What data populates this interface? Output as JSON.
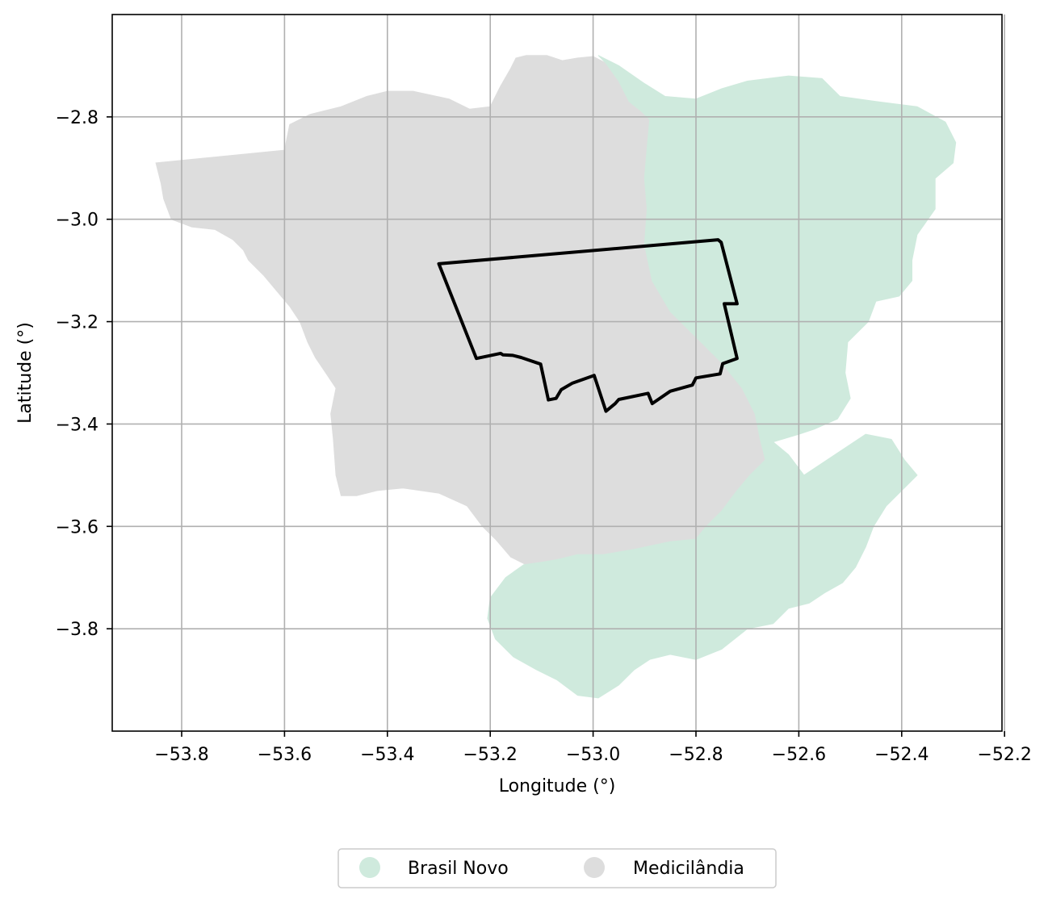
{
  "chart_data": {
    "type": "map",
    "xlabel": "Longitude (°)",
    "ylabel": "Latitude (°)",
    "xlim": [
      -53.935,
      -52.205
    ],
    "ylim": [
      -4.0,
      -2.6
    ],
    "xticks": [
      -53.8,
      -53.6,
      -53.4,
      -53.2,
      -53.0,
      -52.8,
      -52.6,
      -52.4,
      -52.2
    ],
    "yticks": [
      -2.8,
      -3.0,
      -3.2,
      -3.4,
      -3.6,
      -3.8
    ],
    "xtick_labels": [
      "−53.8",
      "−53.6",
      "−53.4",
      "−53.2",
      "−53.0",
      "−52.8",
      "−52.6",
      "−52.4",
      "−52.2"
    ],
    "ytick_labels": [
      "−2.8",
      "−3.0",
      "−3.2",
      "−3.4",
      "−3.6",
      "−3.8"
    ],
    "grid": true,
    "legend_position": "bottom-center",
    "regions": [
      {
        "name": "Medicilândia",
        "color": "#dddddd",
        "polygon": [
          [
            -53.85,
            -2.89
          ],
          [
            -53.6,
            -2.865
          ],
          [
            -53.59,
            -2.815
          ],
          [
            -53.55,
            -2.795
          ],
          [
            -53.49,
            -2.78
          ],
          [
            -53.44,
            -2.76
          ],
          [
            -53.4,
            -2.75
          ],
          [
            -53.35,
            -2.75
          ],
          [
            -53.28,
            -2.765
          ],
          [
            -53.24,
            -2.785
          ],
          [
            -53.2,
            -2.78
          ],
          [
            -53.18,
            -2.74
          ],
          [
            -53.16,
            -2.705
          ],
          [
            -53.15,
            -2.685
          ],
          [
            -53.13,
            -2.68
          ],
          [
            -53.09,
            -2.68
          ],
          [
            -53.06,
            -2.69
          ],
          [
            -53.03,
            -2.685
          ],
          [
            -53.0,
            -2.682
          ],
          [
            -52.975,
            -2.695
          ],
          [
            -52.95,
            -2.73
          ],
          [
            -52.93,
            -2.77
          ],
          [
            -52.905,
            -2.79
          ],
          [
            -52.89,
            -2.805
          ],
          [
            -52.895,
            -2.86
          ],
          [
            -52.9,
            -2.92
          ],
          [
            -52.895,
            -2.98
          ],
          [
            -52.9,
            -3.05
          ],
          [
            -52.885,
            -3.12
          ],
          [
            -52.85,
            -3.18
          ],
          [
            -52.8,
            -3.23
          ],
          [
            -52.75,
            -3.28
          ],
          [
            -52.71,
            -3.33
          ],
          [
            -52.685,
            -3.38
          ],
          [
            -52.675,
            -3.43
          ],
          [
            -52.665,
            -3.47
          ],
          [
            -52.695,
            -3.5
          ],
          [
            -52.72,
            -3.53
          ],
          [
            -52.75,
            -3.57
          ],
          [
            -52.78,
            -3.6
          ],
          [
            -52.8,
            -3.625
          ],
          [
            -52.85,
            -3.63
          ],
          [
            -52.92,
            -3.645
          ],
          [
            -52.98,
            -3.655
          ],
          [
            -53.03,
            -3.655
          ],
          [
            -53.07,
            -3.665
          ],
          [
            -53.1,
            -3.67
          ],
          [
            -53.13,
            -3.675
          ],
          [
            -53.16,
            -3.66
          ],
          [
            -53.19,
            -3.625
          ],
          [
            -53.215,
            -3.6
          ],
          [
            -53.245,
            -3.56
          ],
          [
            -53.3,
            -3.535
          ],
          [
            -53.37,
            -3.525
          ],
          [
            -53.42,
            -3.53
          ],
          [
            -53.46,
            -3.54
          ],
          [
            -53.49,
            -3.54
          ],
          [
            -53.5,
            -3.5
          ],
          [
            -53.505,
            -3.43
          ],
          [
            -53.51,
            -3.38
          ],
          [
            -53.5,
            -3.33
          ],
          [
            -53.52,
            -3.3
          ],
          [
            -53.54,
            -3.27
          ],
          [
            -53.555,
            -3.24
          ],
          [
            -53.57,
            -3.2
          ],
          [
            -53.59,
            -3.17
          ],
          [
            -53.615,
            -3.14
          ],
          [
            -53.64,
            -3.11
          ],
          [
            -53.67,
            -3.08
          ],
          [
            -53.68,
            -3.06
          ],
          [
            -53.7,
            -3.04
          ],
          [
            -53.735,
            -3.02
          ],
          [
            -53.78,
            -3.015
          ],
          [
            -53.82,
            -3.0
          ],
          [
            -53.835,
            -2.96
          ],
          [
            -53.84,
            -2.93
          ]
        ]
      },
      {
        "name": "Brasil Novo",
        "color": "#cfeadd",
        "polygon": [
          [
            -52.99,
            -2.68
          ],
          [
            -52.95,
            -2.7
          ],
          [
            -52.9,
            -2.735
          ],
          [
            -52.86,
            -2.76
          ],
          [
            -52.8,
            -2.765
          ],
          [
            -52.75,
            -2.745
          ],
          [
            -52.7,
            -2.73
          ],
          [
            -52.62,
            -2.72
          ],
          [
            -52.555,
            -2.725
          ],
          [
            -52.52,
            -2.76
          ],
          [
            -52.45,
            -2.77
          ],
          [
            -52.37,
            -2.78
          ],
          [
            -52.315,
            -2.81
          ],
          [
            -52.295,
            -2.85
          ],
          [
            -52.3,
            -2.89
          ],
          [
            -52.335,
            -2.92
          ],
          [
            -52.335,
            -2.98
          ],
          [
            -52.37,
            -3.03
          ],
          [
            -52.38,
            -3.08
          ],
          [
            -52.38,
            -3.12
          ],
          [
            -52.405,
            -3.15
          ],
          [
            -52.45,
            -3.16
          ],
          [
            -52.465,
            -3.2
          ],
          [
            -52.505,
            -3.24
          ],
          [
            -52.51,
            -3.3
          ],
          [
            -52.5,
            -3.35
          ],
          [
            -52.525,
            -3.39
          ],
          [
            -52.57,
            -3.41
          ],
          [
            -52.6,
            -3.42
          ],
          [
            -52.65,
            -3.435
          ],
          [
            -52.62,
            -3.46
          ],
          [
            -52.59,
            -3.5
          ],
          [
            -52.53,
            -3.46
          ],
          [
            -52.47,
            -3.42
          ],
          [
            -52.42,
            -3.43
          ],
          [
            -52.395,
            -3.47
          ],
          [
            -52.37,
            -3.5
          ],
          [
            -52.4,
            -3.53
          ],
          [
            -52.43,
            -3.56
          ],
          [
            -52.455,
            -3.6
          ],
          [
            -52.47,
            -3.64
          ],
          [
            -52.49,
            -3.68
          ],
          [
            -52.515,
            -3.71
          ],
          [
            -52.55,
            -3.73
          ],
          [
            -52.58,
            -3.75
          ],
          [
            -52.62,
            -3.76
          ],
          [
            -52.65,
            -3.79
          ],
          [
            -52.7,
            -3.8
          ],
          [
            -52.75,
            -3.84
          ],
          [
            -52.8,
            -3.86
          ],
          [
            -52.85,
            -3.85
          ],
          [
            -52.89,
            -3.86
          ],
          [
            -52.92,
            -3.88
          ],
          [
            -52.95,
            -3.91
          ],
          [
            -52.99,
            -3.935
          ],
          [
            -53.03,
            -3.93
          ],
          [
            -53.07,
            -3.9
          ],
          [
            -53.11,
            -3.88
          ],
          [
            -53.155,
            -3.855
          ],
          [
            -53.19,
            -3.82
          ],
          [
            -53.205,
            -3.78
          ],
          [
            -53.2,
            -3.74
          ],
          [
            -53.185,
            -3.72
          ],
          [
            -53.17,
            -3.7
          ],
          [
            -53.135,
            -3.675
          ],
          [
            -53.1,
            -3.67
          ],
          [
            -53.07,
            -3.665
          ],
          [
            -53.03,
            -3.655
          ],
          [
            -52.98,
            -3.655
          ],
          [
            -52.92,
            -3.645
          ],
          [
            -52.85,
            -3.63
          ],
          [
            -52.8,
            -3.625
          ],
          [
            -52.78,
            -3.6
          ],
          [
            -52.75,
            -3.57
          ],
          [
            -52.72,
            -3.53
          ],
          [
            -52.695,
            -3.5
          ],
          [
            -52.665,
            -3.47
          ],
          [
            -52.675,
            -3.43
          ],
          [
            -52.685,
            -3.38
          ],
          [
            -52.71,
            -3.33
          ],
          [
            -52.75,
            -3.28
          ],
          [
            -52.8,
            -3.23
          ],
          [
            -52.85,
            -3.18
          ],
          [
            -52.885,
            -3.12
          ],
          [
            -52.9,
            -3.05
          ],
          [
            -52.895,
            -2.98
          ],
          [
            -52.9,
            -2.92
          ],
          [
            -52.895,
            -2.86
          ],
          [
            -52.89,
            -2.805
          ],
          [
            -52.905,
            -2.79
          ],
          [
            -52.93,
            -2.77
          ],
          [
            -52.95,
            -2.73
          ],
          [
            -52.975,
            -2.695
          ]
        ]
      }
    ],
    "outline": {
      "color": "#000000",
      "polygon": [
        [
          -53.3,
          -3.087
        ],
        [
          -52.757,
          -3.04
        ],
        [
          -52.751,
          -3.045
        ],
        [
          -52.72,
          -3.165
        ],
        [
          -52.745,
          -3.165
        ],
        [
          -52.72,
          -3.272
        ],
        [
          -52.748,
          -3.282
        ],
        [
          -52.753,
          -3.302
        ],
        [
          -52.8,
          -3.31
        ],
        [
          -52.807,
          -3.324
        ],
        [
          -52.85,
          -3.336
        ],
        [
          -52.885,
          -3.36
        ],
        [
          -52.893,
          -3.34
        ],
        [
          -52.95,
          -3.352
        ],
        [
          -52.957,
          -3.36
        ],
        [
          -52.975,
          -3.375
        ],
        [
          -52.998,
          -3.305
        ],
        [
          -53.04,
          -3.32
        ],
        [
          -53.062,
          -3.333
        ],
        [
          -53.072,
          -3.35
        ],
        [
          -53.087,
          -3.353
        ],
        [
          -53.102,
          -3.283
        ],
        [
          -53.14,
          -3.27
        ],
        [
          -53.156,
          -3.266
        ],
        [
          -53.175,
          -3.265
        ],
        [
          -53.18,
          -3.262
        ],
        [
          -53.227,
          -3.272
        ],
        [
          -53.3,
          -3.087
        ]
      ]
    },
    "legend": [
      {
        "label": "Brasil Novo",
        "color": "#cfeadd"
      },
      {
        "label": "Medicilândia",
        "color": "#dddddd"
      }
    ]
  }
}
